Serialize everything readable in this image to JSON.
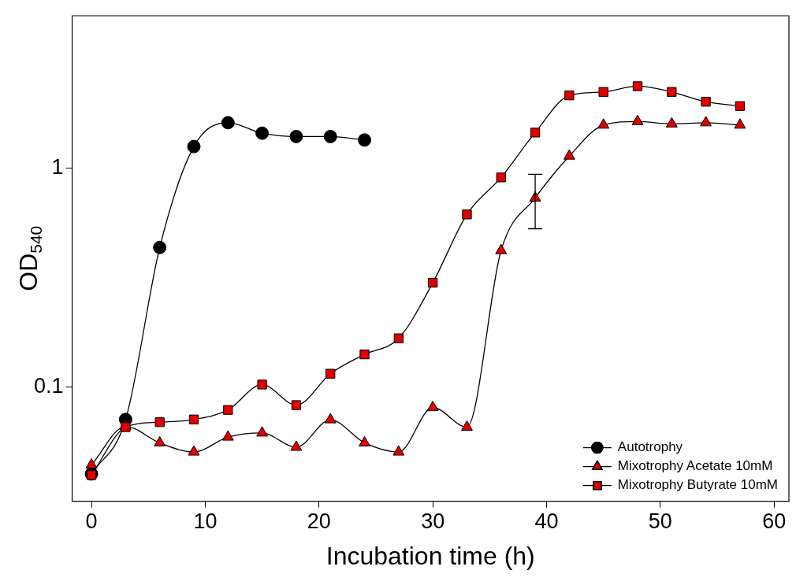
{
  "chart_data": {
    "type": "line",
    "xlabel": "Incubation time (h)",
    "ylabel": "OD$_{540}$",
    "log": "y",
    "xlim": [
      -1.7,
      61.3
    ],
    "ylim": [
      0.03,
      5
    ],
    "xticks": [
      0,
      10,
      20,
      30,
      40,
      50,
      60
    ],
    "yticks": [
      0.1,
      1
    ],
    "grid": false,
    "legend": "bottom right",
    "line_style": "solid",
    "series": [
      {
        "name": "Autotrophy",
        "color": "#000000",
        "marker": "circle",
        "x": [
          0,
          3,
          6,
          9,
          12,
          15,
          18,
          21,
          24
        ],
        "values": [
          0.04,
          0.071,
          0.435,
          1.26,
          1.62,
          1.45,
          1.4,
          1.4,
          1.35
        ]
      },
      {
        "name": "Mixotrophy Acetate 10mM",
        "color": "#e00000",
        "marker": "triangle",
        "x": [
          0,
          3,
          6,
          9,
          12,
          15,
          18,
          21,
          24,
          27,
          30,
          33,
          36,
          39,
          42,
          45,
          48,
          51,
          54,
          57
        ],
        "values": [
          0.044,
          0.066,
          0.0555,
          0.0504,
          0.059,
          0.0616,
          0.053,
          0.0708,
          0.0555,
          0.0504,
          0.0806,
          0.0655,
          0.421,
          0.733,
          1.14,
          1.58,
          1.64,
          1.6,
          1.62,
          1.58
        ],
        "errors": [
          null,
          null,
          null,
          null,
          null,
          null,
          null,
          null,
          null,
          null,
          null,
          null,
          null,
          [
            0.53,
            0.94
          ],
          null,
          null,
          null,
          null,
          null,
          null
        ]
      },
      {
        "name": "Mixotrophy Butyrate 10mM",
        "color": "#e00000",
        "marker": "square",
        "x": [
          0,
          3,
          6,
          9,
          12,
          15,
          18,
          21,
          24,
          27,
          30,
          33,
          36,
          39,
          42,
          45,
          48,
          51,
          54,
          57
        ],
        "values": [
          0.0395,
          0.0655,
          0.069,
          0.071,
          0.0785,
          0.1026,
          0.0826,
          0.115,
          0.141,
          0.167,
          0.3,
          0.616,
          0.91,
          1.46,
          2.16,
          2.24,
          2.38,
          2.24,
          2.02,
          1.93
        ]
      }
    ]
  }
}
